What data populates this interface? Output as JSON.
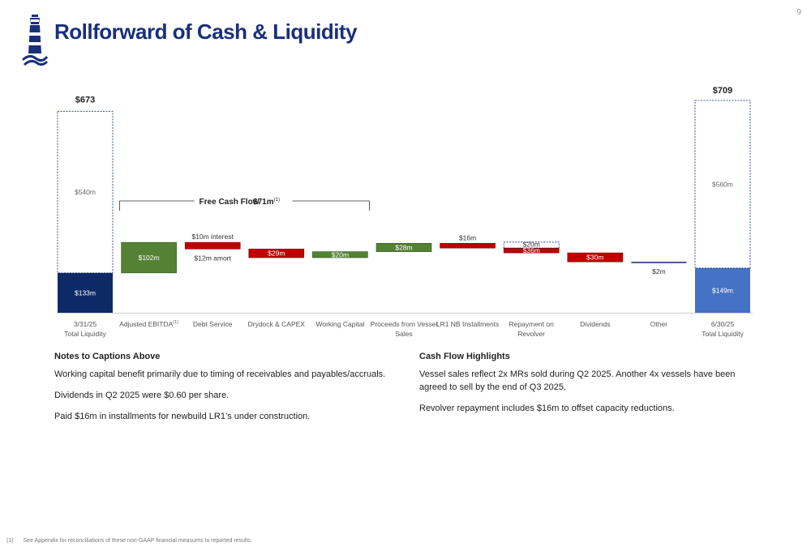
{
  "page_number": "9",
  "title": "Rollforward of Cash & Liquidity",
  "colors": {
    "navy": "#0d2a66",
    "blue": "#4472c4",
    "green": "#548235",
    "red": "#c00000",
    "title": "#1a2f7a"
  },
  "icons": {
    "logo": "lighthouse-icon"
  },
  "chart_data": {
    "type": "waterfall",
    "unit": "$m",
    "categories": [
      "3/31/25\nTotal Liquidity",
      "Adjusted EBITDA",
      "Debt Service",
      "Drydock & CAPEX",
      "Working Capital",
      "Proceeds from Vessel Sales",
      "LR1 NB Installments",
      "Repayment on Revolver",
      "Dividends",
      "Other",
      "6/30/25\nTotal Liquidity"
    ],
    "category_superscripts": {
      "Adjusted EBITDA": "(1)"
    },
    "start_total": {
      "label": "$673",
      "cash": 133,
      "cash_label": "$133m",
      "undrawn": 540,
      "undrawn_label": "$540m"
    },
    "end_total": {
      "label": "$709",
      "cash": 149,
      "cash_label": "$149m",
      "undrawn": 560,
      "undrawn_label": "$560m"
    },
    "steps": [
      {
        "category": "Adjusted EBITDA",
        "value": 102,
        "label": "$102m"
      },
      {
        "category": "Debt Service",
        "value": -22,
        "top_label": "$10m interest",
        "bottom_label": "$12m amort"
      },
      {
        "category": "Drydock & CAPEX",
        "value": -29,
        "label": "$29m"
      },
      {
        "category": "Working Capital",
        "value": 20,
        "label": "$20m"
      },
      {
        "category": "Proceeds from Vessel Sales",
        "value": 28,
        "label": "$28m"
      },
      {
        "category": "LR1 NB Installments",
        "value": -16,
        "top_label": "$16m"
      },
      {
        "category": "Repayment on Revolver",
        "value": -16,
        "dotted_value": 20,
        "dotted_label": "$20m",
        "label": "$36m"
      },
      {
        "category": "Dividends",
        "value": -30,
        "label": "$30m"
      },
      {
        "category": "Other",
        "value": -2,
        "bottom_label": "$2m"
      }
    ],
    "free_cash_flow": {
      "label": "Free Cash Flow",
      "value": "$71m",
      "superscript": "(1)"
    }
  },
  "notes_left": {
    "heading": "Notes to Captions Above",
    "items": [
      "Working capital benefit primarily due to timing of receivables and payables/accruals.",
      "Dividends in Q2 2025 were $0.60 per share.",
      "Paid $16m in installments for newbuild LR1’s under construction."
    ]
  },
  "notes_right": {
    "heading": "Cash Flow Highlights",
    "items": [
      "Vessel sales reflect 2x MRs sold during Q2 2025.  Another 4x vessels have been agreed to sell by the end of Q3 2025.",
      "Revolver repayment includes $16m to offset capacity reductions."
    ]
  },
  "footnote": {
    "number": "(1)",
    "text": "See Appendix for reconciliations of these non-GAAP financial measures to reported results."
  }
}
